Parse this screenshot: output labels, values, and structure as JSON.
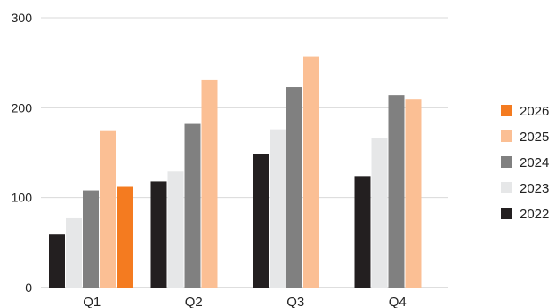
{
  "chart_data": {
    "type": "bar",
    "categories": [
      "Q1",
      "Q2",
      "Q3",
      "Q4"
    ],
    "series": [
      {
        "name": "2022",
        "color": "#231f20",
        "values": [
          59,
          118,
          149,
          124
        ]
      },
      {
        "name": "2023",
        "color": "#e6e7e8",
        "values": [
          77,
          129,
          176,
          166
        ]
      },
      {
        "name": "2024",
        "color": "#808080",
        "values": [
          108,
          182,
          223,
          214
        ]
      },
      {
        "name": "2025",
        "color": "#fbbf94",
        "values": [
          174,
          231,
          257,
          209
        ]
      },
      {
        "name": "2026",
        "color": "#f47b20",
        "values": [
          112,
          null,
          null,
          null
        ]
      }
    ],
    "yticks": [
      "0",
      "100",
      "200",
      "300"
    ],
    "ylim": [
      0,
      300
    ],
    "grid": true,
    "legend_position": "right",
    "legend_order": [
      "2026",
      "2025",
      "2024",
      "2023",
      "2022"
    ]
  }
}
